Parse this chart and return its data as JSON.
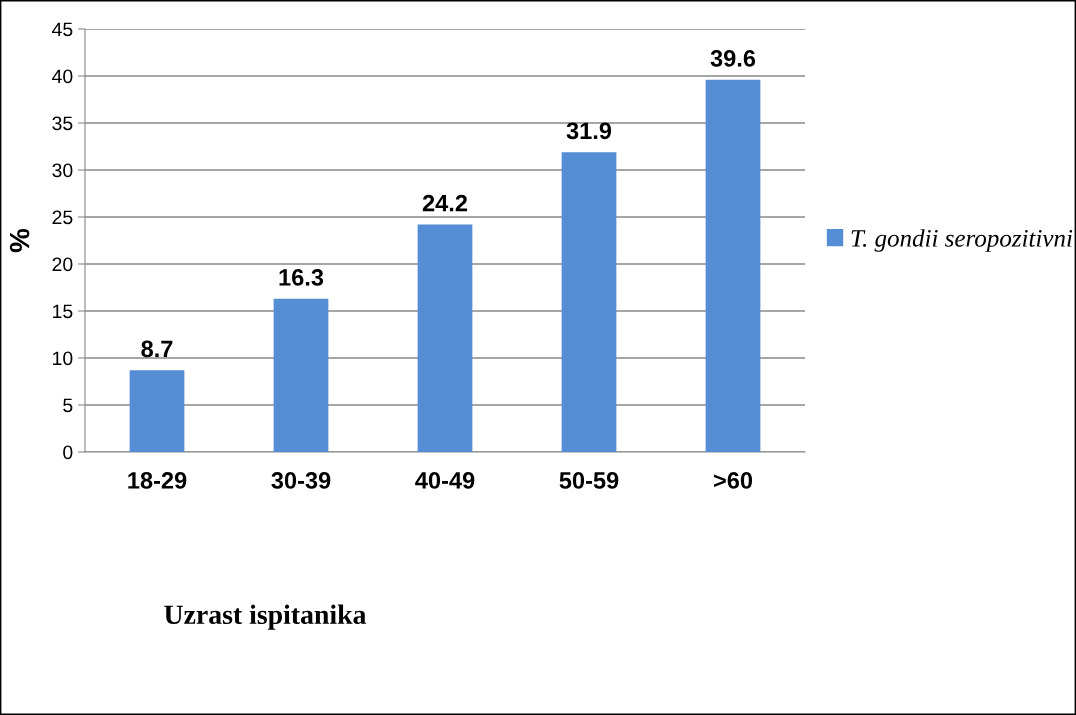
{
  "chart_data": {
    "type": "bar",
    "xlabel": "Uzrast ispitanika",
    "ylabel": "%",
    "categories": [
      "18-29",
      "30-39",
      "40-49",
      "50-59",
      ">60"
    ],
    "series": [
      {
        "name": "T. gondii seropozitivni",
        "color": "#558ed5",
        "values": [
          8.7,
          16.3,
          24.2,
          31.9,
          39.6
        ]
      }
    ],
    "ylim": [
      0,
      45
    ],
    "yticks": [
      0,
      5,
      10,
      15,
      20,
      25,
      30,
      35,
      40,
      45
    ],
    "grid": "y",
    "legend": "right",
    "data_labels": true
  }
}
